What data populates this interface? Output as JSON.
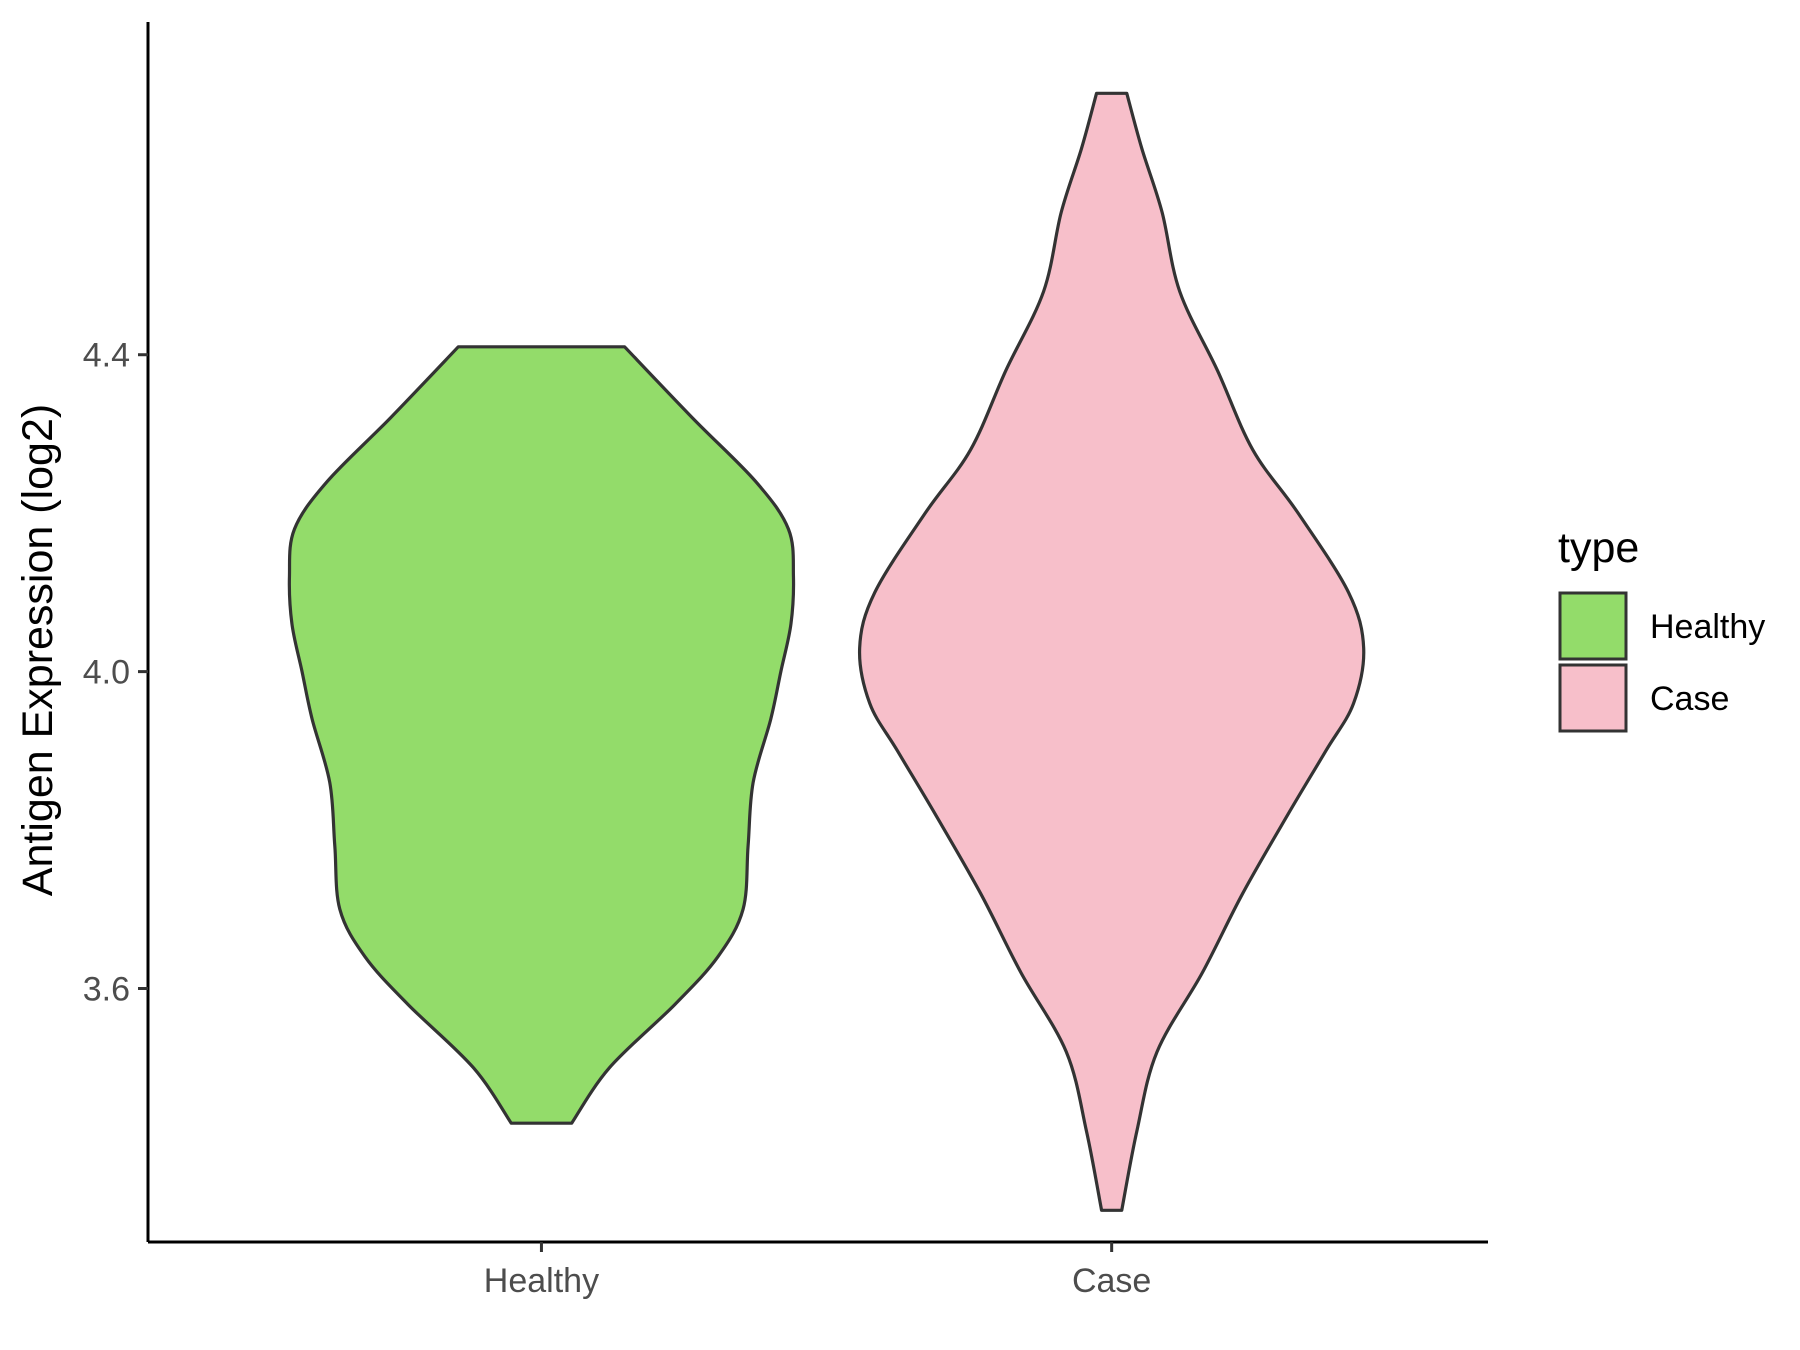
{
  "chart_data": {
    "type": "violin",
    "ylabel": "Antigen Expression (log2)",
    "xlabel": "",
    "categories": [
      "Healthy",
      "Case"
    ],
    "yticks": [
      3.6,
      4.0,
      4.4
    ],
    "ylim": [
      3.28,
      4.82
    ],
    "grid": false,
    "legend": {
      "title": "type",
      "position": "right",
      "entries": [
        {
          "label": "Healthy",
          "color": "#93dc6a"
        },
        {
          "label": "Case",
          "color": "#f7bfca"
        }
      ]
    },
    "series": [
      {
        "name": "Healthy",
        "color": "#93dc6a",
        "outline": "#333333",
        "min": 3.43,
        "max": 4.41,
        "profile": [
          [
            3.43,
            0.12
          ],
          [
            3.5,
            0.27
          ],
          [
            3.58,
            0.53
          ],
          [
            3.64,
            0.7
          ],
          [
            3.7,
            0.8
          ],
          [
            3.78,
            0.82
          ],
          [
            3.86,
            0.84
          ],
          [
            3.94,
            0.91
          ],
          [
            4.0,
            0.95
          ],
          [
            4.06,
            0.99
          ],
          [
            4.12,
            1.0
          ],
          [
            4.18,
            0.98
          ],
          [
            4.24,
            0.85
          ],
          [
            4.32,
            0.6
          ],
          [
            4.41,
            0.33
          ]
        ]
      },
      {
        "name": "Case",
        "color": "#f7bfca",
        "outline": "#333333",
        "min": 3.32,
        "max": 4.73,
        "profile": [
          [
            3.32,
            0.04
          ],
          [
            3.42,
            0.1
          ],
          [
            3.52,
            0.18
          ],
          [
            3.62,
            0.36
          ],
          [
            3.72,
            0.52
          ],
          [
            3.82,
            0.7
          ],
          [
            3.9,
            0.85
          ],
          [
            3.96,
            0.96
          ],
          [
            4.03,
            1.0
          ],
          [
            4.1,
            0.94
          ],
          [
            4.2,
            0.74
          ],
          [
            4.28,
            0.56
          ],
          [
            4.38,
            0.42
          ],
          [
            4.48,
            0.27
          ],
          [
            4.58,
            0.2
          ],
          [
            4.66,
            0.12
          ],
          [
            4.73,
            0.06
          ]
        ]
      }
    ]
  }
}
